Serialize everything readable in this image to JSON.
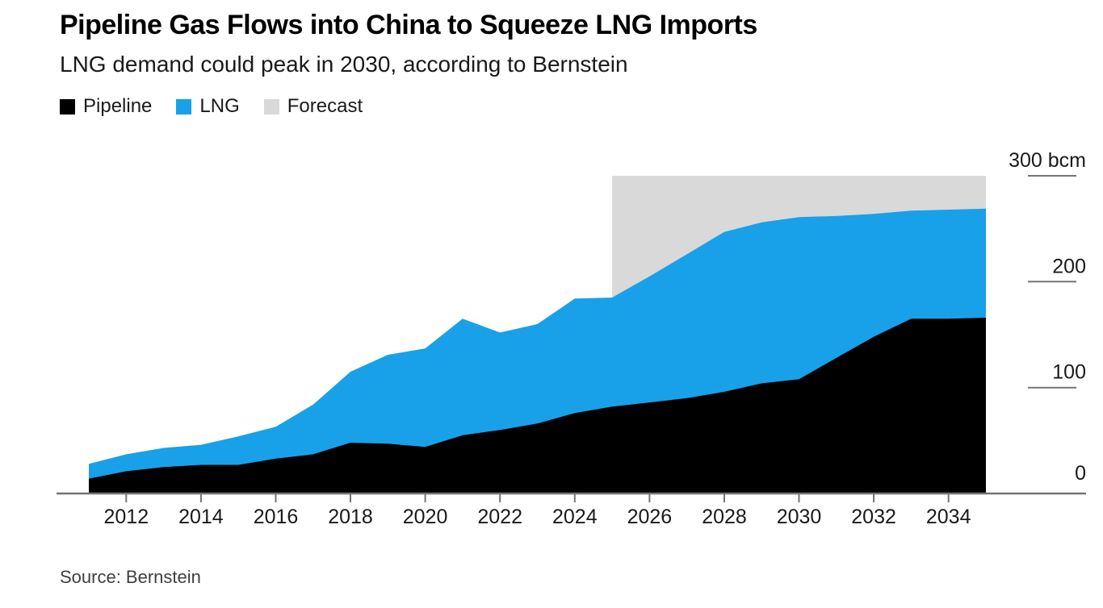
{
  "header": {
    "title": "Pipeline Gas Flows into China to Squeeze LNG Imports",
    "subtitle": "LNG demand could peak in 2030, according to Bernstein"
  },
  "legend": {
    "items": [
      {
        "label": "Pipeline",
        "color": "#000000"
      },
      {
        "label": "LNG",
        "color": "#18a1e8"
      },
      {
        "label": "Forecast",
        "color": "#d9d9d9"
      }
    ]
  },
  "source": "Source: Bernstein",
  "colors": {
    "pipeline": "#000000",
    "lng": "#18a1e8",
    "forecast_band": "#d9d9d9",
    "axis": "#757575",
    "label_text": "#1a1a1a",
    "background": "#ffffff"
  },
  "chart_data": {
    "type": "area",
    "stacked": true,
    "title": "Pipeline Gas Flows into China to Squeeze LNG Imports",
    "subtitle": "LNG demand could peak in 2030, according to Bernstein",
    "unit": "bcm",
    "x": [
      2011,
      2012,
      2013,
      2014,
      2015,
      2016,
      2017,
      2018,
      2019,
      2020,
      2021,
      2022,
      2023,
      2024,
      2025,
      2026,
      2027,
      2028,
      2029,
      2030,
      2031,
      2032,
      2033,
      2034,
      2035
    ],
    "series": [
      {
        "name": "Pipeline",
        "color": "#000000",
        "values": [
          14,
          21,
          25,
          27,
          27,
          33,
          37,
          48,
          47,
          44,
          55,
          60,
          66,
          76,
          82,
          86,
          90,
          96,
          104,
          108,
          128,
          148,
          165,
          165,
          166
        ]
      },
      {
        "name": "LNG",
        "color": "#18a1e8",
        "values": [
          14,
          16,
          18,
          19,
          27,
          30,
          47,
          67,
          84,
          93,
          110,
          92,
          94,
          108,
          103,
          119,
          136,
          151,
          152,
          153,
          134,
          116,
          102,
          103,
          103
        ]
      }
    ],
    "forecast": {
      "label": "Forecast",
      "color": "#d9d9d9",
      "start": 2025,
      "end": 2035,
      "top": 300
    },
    "ylim": [
      0,
      300
    ],
    "yticks": [
      0,
      100,
      200,
      300
    ],
    "ytick_labels": [
      "0",
      "100",
      "200",
      "300 bcm"
    ],
    "xticks": [
      2012,
      2014,
      2016,
      2018,
      2020,
      2022,
      2024,
      2026,
      2028,
      2030,
      2032,
      2034
    ],
    "legend_position": "top-left",
    "grid": false,
    "y_axis_side": "right"
  }
}
